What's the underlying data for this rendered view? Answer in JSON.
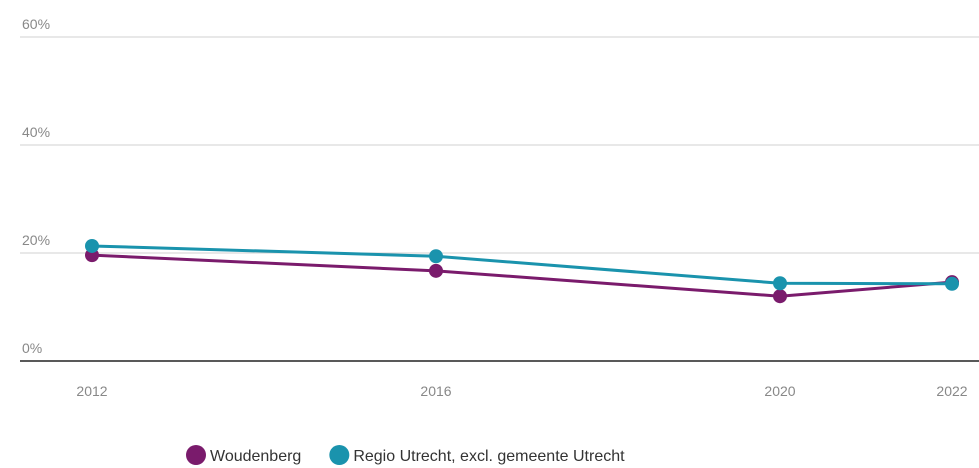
{
  "chart_data": {
    "type": "line",
    "x": [
      2012,
      2016,
      2020,
      2022
    ],
    "series": [
      {
        "name": "Woudenberg",
        "color": "#7a1b6c",
        "values": [
          19.6,
          16.7,
          12.0,
          14.6
        ]
      },
      {
        "name": "Regio Utrecht, excl. gemeente Utrecht",
        "color": "#1a93ad",
        "values": [
          21.3,
          19.4,
          14.4,
          14.3
        ]
      }
    ],
    "xlim": [
      2012,
      2022
    ],
    "xticks": [
      2012,
      2016,
      2020,
      2022
    ],
    "ylim": [
      0,
      60
    ],
    "yticks": [
      {
        "value": 0,
        "label": "0%"
      },
      {
        "value": 20,
        "label": "20%"
      },
      {
        "value": 40,
        "label": "40%"
      },
      {
        "value": 60,
        "label": "60%"
      }
    ],
    "grid": true,
    "legend": "bottom"
  }
}
